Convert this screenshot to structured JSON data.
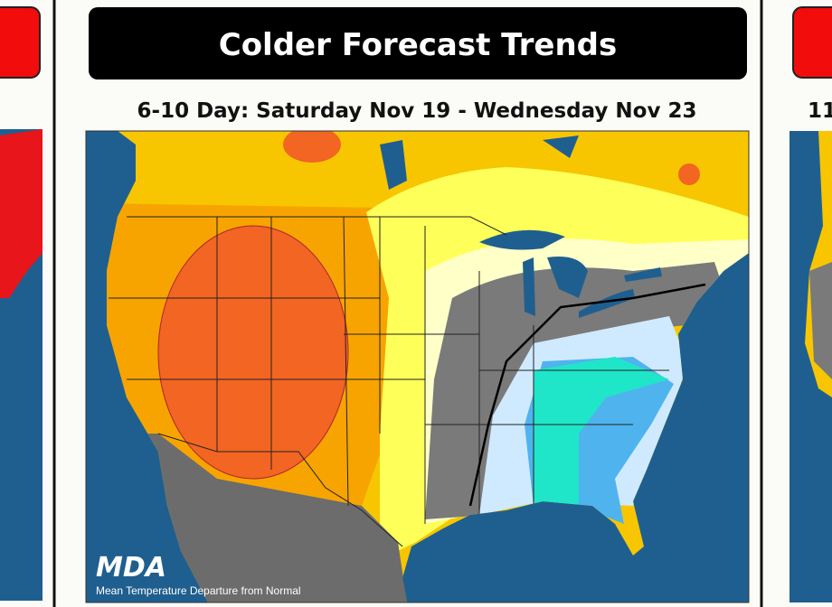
{
  "header": {
    "title": "Colder Forecast Trends",
    "subtitle": "6-10 Day: Saturday Nov 19 - Wednesday Nov 23"
  },
  "map": {
    "logo": "MDA",
    "caption": "Mean Temperature Departure from Normal"
  },
  "right_panel": {
    "subtitle": "11"
  }
}
